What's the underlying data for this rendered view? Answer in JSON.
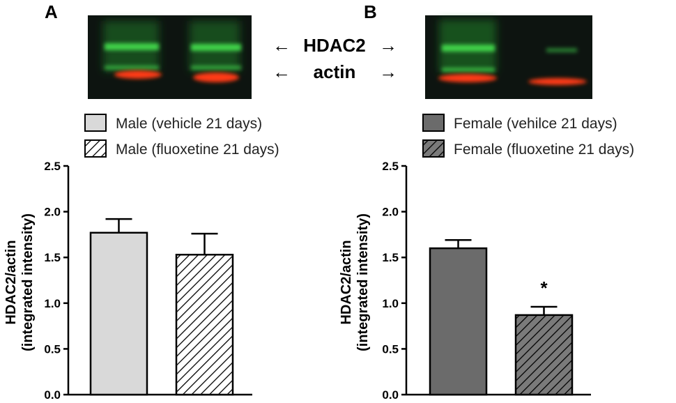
{
  "figure": {
    "blot_labels": {
      "hdac2": "HDAC2",
      "actin": "actin"
    },
    "arrow_glyphs": {
      "left": "←",
      "right": "→"
    },
    "colors": {
      "blot_background": "#0d1410",
      "band_green": "#3fd24a",
      "band_red": "#ff3a12",
      "male_vehicle": "#d9d9d9",
      "male_fluoxetine_fill": "#ffffff",
      "female_vehicle": "#6b6b6b",
      "female_fluoxetine_fill": "#7a7a7a",
      "hatch_stroke": "#000000"
    }
  },
  "chart_data": [
    {
      "type": "bar",
      "panel": "A",
      "ylabel": "HDAC2/actin (integrated intensity)",
      "ylabel_lines": [
        "HDAC2/actin",
        "(integrated intensity)"
      ],
      "ylim": [
        0,
        2.5
      ],
      "yticks": [
        "0.0",
        "0.5",
        "1.0",
        "1.5",
        "2.0",
        "2.5"
      ],
      "series": [
        {
          "name": "Male (vehicle 21 days)",
          "value": 1.77,
          "error": 0.15,
          "pattern": "solid",
          "color": "#d9d9d9"
        },
        {
          "name": "Male (fluoxetine 21 days)",
          "value": 1.53,
          "error": 0.23,
          "pattern": "hatched",
          "color": "#ffffff"
        }
      ],
      "annotations": []
    },
    {
      "type": "bar",
      "panel": "B",
      "ylabel": "HDAC2/actin (integrated intensity)",
      "ylabel_lines": [
        "HDAC2/actin",
        "(integrated intensity)"
      ],
      "ylim": [
        0,
        2.5
      ],
      "yticks": [
        "0.0",
        "0.5",
        "1.0",
        "1.5",
        "2.0",
        "2.5"
      ],
      "series": [
        {
          "name": "Female (vehilce 21 days)",
          "value": 1.6,
          "error": 0.09,
          "pattern": "solid",
          "color": "#6b6b6b"
        },
        {
          "name": "Female (fluoxetine 21 days)",
          "value": 0.87,
          "error": 0.09,
          "pattern": "hatched",
          "color": "#7a7a7a"
        }
      ],
      "annotations": [
        {
          "bar": 1,
          "text": "*"
        }
      ]
    }
  ]
}
